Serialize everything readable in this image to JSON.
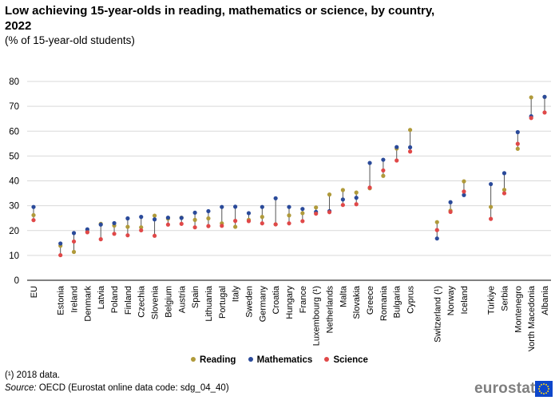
{
  "chart_data": {
    "type": "scatter",
    "title": "Low achieving 15-year-olds in reading, mathematics or science, by country, 2022",
    "subtitle": "(% of 15-year-old students)",
    "xlabel": "",
    "ylabel": "",
    "ylim": [
      0,
      80
    ],
    "yticks": [
      0,
      10,
      20,
      30,
      40,
      50,
      60,
      70,
      80
    ],
    "grid": true,
    "legend_position": "bottom",
    "categories": [
      "EU",
      "Estonia",
      "Ireland",
      "Denmark",
      "Latvia",
      "Poland",
      "Finland",
      "Czechia",
      "Slovenia",
      "Belgium",
      "Austria",
      "Spain",
      "Lithuania",
      "Portugal",
      "Italy",
      "Sweden",
      "Germany",
      "Croatia",
      "Hungary",
      "France",
      "Luxembourg (¹)",
      "Netherlands",
      "Malta",
      "Slovakia",
      "Greece",
      "Romania",
      "Bulgaria",
      "Cyprus",
      "Switzerland (¹)",
      "Norway",
      "Iceland",
      "Türkiye",
      "Serbia",
      "Montenegro",
      "North Macedonia",
      "Albania"
    ],
    "groups": [
      1,
      27,
      3,
      5
    ],
    "series": [
      {
        "name": "Reading",
        "color": "#b09a3a",
        "values": [
          26.2,
          13.9,
          11.4,
          19.5,
          22.7,
          22.0,
          21.5,
          21.3,
          26.0,
          24.8,
          25.2,
          24.3,
          24.9,
          22.9,
          21.5,
          24.3,
          25.5,
          22.5,
          26.1,
          27.0,
          29.3,
          34.5,
          36.3,
          35.3,
          37.0,
          42.0,
          53.0,
          60.5,
          23.4,
          28.0,
          39.8,
          29.5,
          36.4,
          52.9,
          73.6,
          73.8
        ]
      },
      {
        "name": "Mathematics",
        "color": "#2a4a9a",
        "values": [
          29.5,
          14.8,
          19.0,
          20.5,
          22.4,
          23.0,
          24.9,
          25.5,
          24.5,
          25.2,
          25.1,
          27.2,
          27.8,
          29.5,
          29.6,
          27.0,
          29.5,
          33.0,
          29.5,
          28.7,
          27.5,
          27.8,
          32.5,
          33.2,
          47.2,
          48.5,
          53.6,
          53.5,
          16.8,
          31.4,
          34.3,
          38.7,
          43.1,
          59.6,
          66.0,
          73.8
        ]
      },
      {
        "name": "Science",
        "color": "#e04848",
        "values": [
          24.2,
          10.1,
          15.6,
          19.3,
          16.5,
          18.7,
          18.1,
          20.1,
          17.9,
          22.4,
          22.7,
          21.3,
          21.8,
          21.9,
          23.9,
          23.8,
          22.9,
          22.5,
          22.9,
          23.8,
          26.8,
          27.4,
          30.3,
          30.6,
          37.3,
          44.2,
          48.2,
          51.8,
          20.2,
          27.5,
          35.7,
          24.7,
          35.0,
          54.9,
          65.3,
          67.5
        ]
      }
    ]
  },
  "footnote": "(¹) 2018 data.",
  "source_label": "Source:",
  "source_text": " OECD (Eurostat online data code: sdg_04_40)",
  "logo_text": "eurostat",
  "logo_icon": "eu-flag-icon"
}
